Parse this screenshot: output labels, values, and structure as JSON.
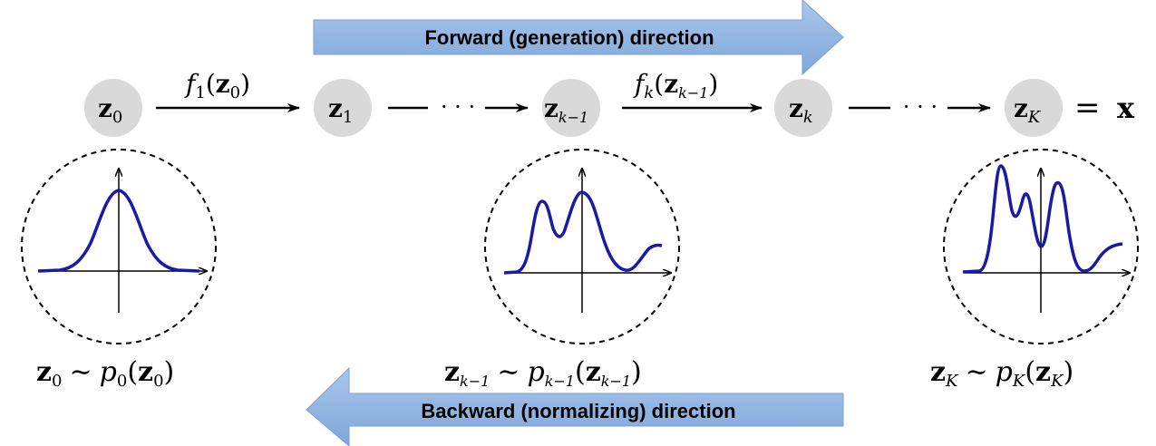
{
  "forward_arrow": {
    "label": "Forward (generation) direction",
    "fill": "#8eb4e3"
  },
  "backward_arrow": {
    "label": "Backward (normalizing) direction",
    "fill": "#8eb4e3"
  },
  "nodes": [
    {
      "sym": "z",
      "sub": "0"
    },
    {
      "sym": "z",
      "sub": "1"
    },
    {
      "sym": "z",
      "sub": "k−1"
    },
    {
      "sym": "z",
      "sub": "k"
    },
    {
      "sym": "z",
      "sub": "K"
    }
  ],
  "node_color": "#d9d9d9",
  "transforms": [
    {
      "f": "f",
      "fsub": "1",
      "arg": "z",
      "argsub": "0"
    },
    {
      "f": "f",
      "fsub": "k",
      "arg": "z",
      "argsub": "k−1"
    }
  ],
  "ellipsis": "· · ·",
  "equals_x": {
    "eq": "=",
    "x": "x"
  },
  "distributions": [
    {
      "z": "z",
      "zsub": "0",
      "sim": "∼",
      "p": "p",
      "psub": "0",
      "arg": "z",
      "argsub": "0"
    },
    {
      "z": "z",
      "zsub": "k−1",
      "sim": "∼",
      "p": "p",
      "psub": "k−1",
      "arg": "z",
      "argsub": "k−1"
    },
    {
      "z": "z",
      "zsub": "K",
      "sim": "∼",
      "p": "p",
      "psub": "K",
      "arg": "z",
      "argsub": "K"
    }
  ],
  "curve_color": "#1a1aa6"
}
